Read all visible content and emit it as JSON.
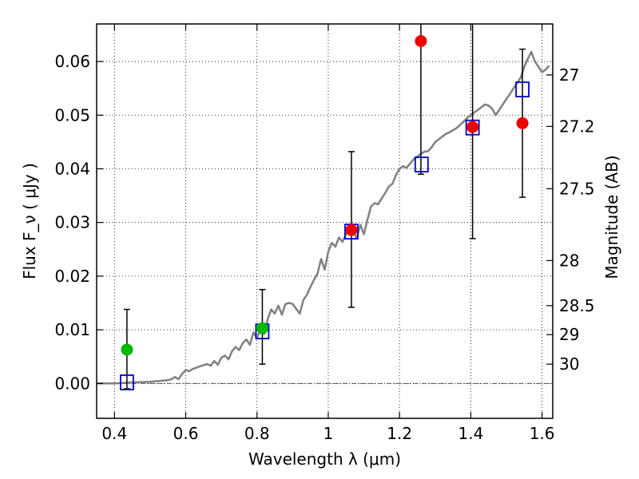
{
  "chart_data": {
    "type": "scatter",
    "xlabel": "Wavelength  λ (μm)",
    "ylabel": "Flux  F_ν ( μJy )",
    "y2label": "Magnitude (AB)",
    "xlim": [
      0.35,
      1.63
    ],
    "ylim": [
      -0.0065,
      0.067
    ],
    "grid": true,
    "x_ticks": [
      0.4,
      0.6,
      0.8,
      1.0,
      1.2,
      1.4,
      1.6
    ],
    "x_tick_labels": [
      "0.4",
      "0.6",
      "0.8",
      "1",
      "1.2",
      "1.4",
      "1.6"
    ],
    "y_ticks": [
      0.0,
      0.01,
      0.02,
      0.03,
      0.04,
      0.05,
      0.06
    ],
    "y_tick_labels": [
      "0.00",
      "0.01",
      "0.02",
      "0.03",
      "0.04",
      "0.05",
      "0.06"
    ],
    "mag_ticks": [
      {
        "label": "27",
        "flux": 0.0575
      },
      {
        "label": "27.2",
        "flux": 0.0479
      },
      {
        "label": "27.5",
        "flux": 0.0363
      },
      {
        "label": "28",
        "flux": 0.0229
      },
      {
        "label": "28.5",
        "flux": 0.0145
      },
      {
        "label": "29",
        "flux": 0.0091
      },
      {
        "label": "30",
        "flux": 0.0036
      }
    ],
    "zero_line": 0.0,
    "colors": {
      "model": "#808080",
      "green": "#00bb00",
      "red": "#ee0000",
      "square": "#0000cc",
      "error": "#000000",
      "zero": "#555555"
    },
    "model_spectrum": {
      "x": [
        0.35,
        0.4,
        0.45,
        0.5,
        0.53,
        0.55,
        0.56,
        0.57,
        0.58,
        0.59,
        0.6,
        0.61,
        0.62,
        0.64,
        0.66,
        0.67,
        0.68,
        0.69,
        0.7,
        0.71,
        0.72,
        0.73,
        0.74,
        0.75,
        0.76,
        0.77,
        0.78,
        0.79,
        0.8,
        0.81,
        0.82,
        0.83,
        0.84,
        0.85,
        0.86,
        0.87,
        0.88,
        0.89,
        0.9,
        0.92,
        0.93,
        0.94,
        0.95,
        0.96,
        0.97,
        0.98,
        0.99,
        1.0,
        1.01,
        1.02,
        1.03,
        1.04,
        1.05,
        1.06,
        1.07,
        1.08,
        1.09,
        1.1,
        1.11,
        1.12,
        1.13,
        1.14,
        1.15,
        1.16,
        1.17,
        1.18,
        1.19,
        1.2,
        1.21,
        1.22,
        1.23,
        1.24,
        1.25,
        1.26,
        1.27,
        1.28,
        1.29,
        1.3,
        1.31,
        1.32,
        1.33,
        1.34,
        1.35,
        1.36,
        1.37,
        1.38,
        1.39,
        1.4,
        1.41,
        1.42,
        1.43,
        1.44,
        1.45,
        1.46,
        1.47,
        1.48,
        1.49,
        1.5,
        1.51,
        1.52,
        1.53,
        1.54,
        1.55,
        1.56,
        1.57,
        1.58,
        1.59,
        1.6,
        1.61,
        1.62
      ],
      "y": [
        0.0,
        0.0,
        0.0002,
        0.0003,
        0.0005,
        0.0006,
        0.0008,
        0.0012,
        0.0008,
        0.0018,
        0.0025,
        0.0023,
        0.0027,
        0.0032,
        0.0036,
        0.0033,
        0.0042,
        0.0035,
        0.0048,
        0.0052,
        0.0045,
        0.006,
        0.0068,
        0.0062,
        0.0075,
        0.0082,
        0.0072,
        0.0095,
        0.0085,
        0.01,
        0.0092,
        0.012,
        0.0138,
        0.013,
        0.0145,
        0.0128,
        0.0148,
        0.015,
        0.0148,
        0.013,
        0.0155,
        0.0165,
        0.018,
        0.0193,
        0.0205,
        0.0232,
        0.0212,
        0.0246,
        0.0262,
        0.0255,
        0.0272,
        0.0264,
        0.0278,
        0.0288,
        0.0284,
        0.027,
        0.0296,
        0.0278,
        0.0305,
        0.033,
        0.0336,
        0.0334,
        0.0345,
        0.0355,
        0.0367,
        0.0372,
        0.0388,
        0.04,
        0.0405,
        0.0402,
        0.041,
        0.0418,
        0.0423,
        0.0428,
        0.0432,
        0.0433,
        0.044,
        0.045,
        0.0455,
        0.046,
        0.0465,
        0.0468,
        0.0472,
        0.0476,
        0.0482,
        0.0488,
        0.0495,
        0.05,
        0.0505,
        0.051,
        0.0515,
        0.052,
        0.0518,
        0.0512,
        0.05,
        0.051,
        0.052,
        0.053,
        0.054,
        0.055,
        0.056,
        0.057,
        0.059,
        0.0605,
        0.0618,
        0.06,
        0.059,
        0.058,
        0.0585,
        0.0592
      ]
    },
    "points_green": [
      {
        "x": 0.435,
        "y": 0.0063,
        "ylow": -0.001,
        "yhigh": 0.0138
      },
      {
        "x": 0.815,
        "y": 0.0103,
        "ylow": 0.0036,
        "yhigh": 0.0175
      }
    ],
    "points_red": [
      {
        "x": 1.065,
        "y": 0.0286,
        "ylow": 0.0142,
        "yhigh": 0.0432
      },
      {
        "x": 1.26,
        "y": 0.0638,
        "ylow": 0.039,
        "yhigh": 0.067
      },
      {
        "x": 1.405,
        "y": 0.0478,
        "ylow": 0.027,
        "yhigh": 0.067
      },
      {
        "x": 1.545,
        "y": 0.0485,
        "ylow": 0.0347,
        "yhigh": 0.0623
      }
    ],
    "model_squares": [
      {
        "x": 0.435,
        "y": 0.0002
      },
      {
        "x": 0.815,
        "y": 0.0097
      },
      {
        "x": 1.065,
        "y": 0.0283
      },
      {
        "x": 1.262,
        "y": 0.0408
      },
      {
        "x": 1.405,
        "y": 0.0477
      },
      {
        "x": 1.545,
        "y": 0.0548
      }
    ]
  }
}
